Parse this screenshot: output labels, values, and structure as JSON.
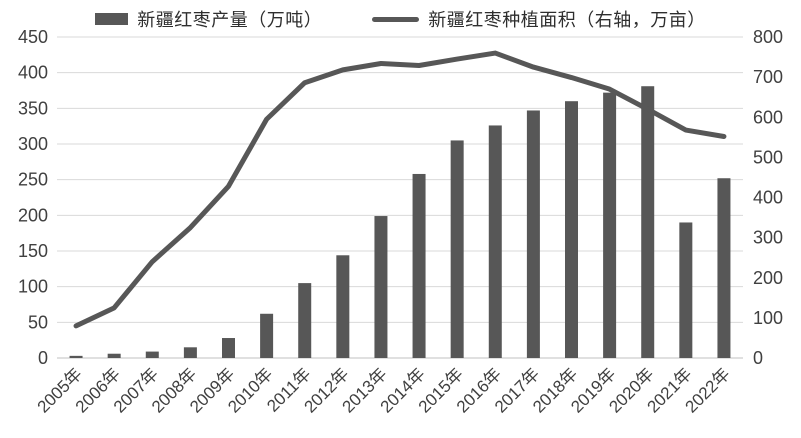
{
  "chart_data": {
    "type": "bar",
    "subtype": "bar+line combo",
    "categories": [
      "2005年",
      "2006年",
      "2007年",
      "2008年",
      "2009年",
      "2010年",
      "2011年",
      "2012年",
      "2013年",
      "2014年",
      "2015年",
      "2016年",
      "2017年",
      "2018年",
      "2019年",
      "2020年",
      "2021年",
      "2022年"
    ],
    "series": [
      {
        "name": "新疆红枣产量（万吨）",
        "type": "bar",
        "axis": "left",
        "values": [
          3,
          6,
          9,
          15,
          28,
          62,
          105,
          144,
          199,
          258,
          305,
          326,
          347,
          360,
          372,
          381,
          190,
          252
        ]
      },
      {
        "name": "新疆红枣种植面积（右轴，万亩）",
        "type": "line",
        "axis": "right",
        "values": [
          80,
          125,
          240,
          325,
          428,
          595,
          686,
          718,
          734,
          729,
          745,
          760,
          725,
          699,
          670,
          620,
          568,
          552
        ]
      }
    ],
    "title": "",
    "xlabel": "",
    "ylabel_left": "",
    "ylabel_right": "",
    "left_axis": {
      "min": 0,
      "max": 450,
      "step": 50
    },
    "right_axis": {
      "min": 0,
      "max": 800,
      "step": 100
    },
    "grid": true,
    "legend_position": "top",
    "x_label_rotation_deg": 45,
    "colors": {
      "bar": "#575757",
      "line": "#575757",
      "grid": "#d9d9d9",
      "axis_line": "#c0c0c0",
      "tick_text": "#404040",
      "legend_text": "#2e2e2e",
      "background": "#ffffff"
    }
  }
}
